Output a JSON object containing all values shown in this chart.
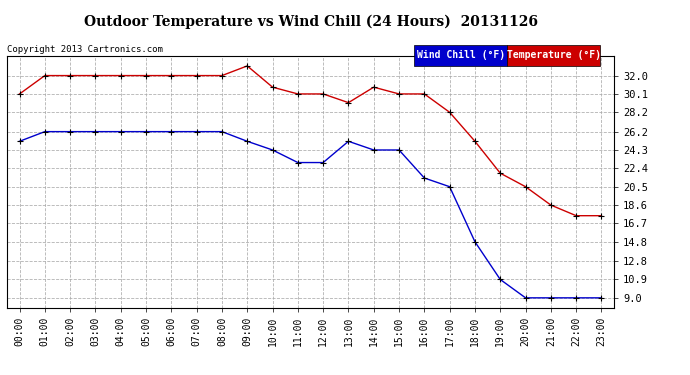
{
  "title": "Outdoor Temperature vs Wind Chill (24 Hours)  20131126",
  "copyright": "Copyright 2013 Cartronics.com",
  "background_color": "#ffffff",
  "plot_bg_color": "#ffffff",
  "grid_color": "#aaaaaa",
  "x_labels": [
    "00:00",
    "01:00",
    "02:00",
    "03:00",
    "04:00",
    "05:00",
    "06:00",
    "07:00",
    "08:00",
    "09:00",
    "10:00",
    "11:00",
    "12:00",
    "13:00",
    "14:00",
    "15:00",
    "16:00",
    "17:00",
    "18:00",
    "19:00",
    "20:00",
    "21:00",
    "22:00",
    "23:00"
  ],
  "y_ticks": [
    9.0,
    10.9,
    12.8,
    14.8,
    16.7,
    18.6,
    20.5,
    22.4,
    24.3,
    26.2,
    28.2,
    30.1,
    32.0
  ],
  "temp_color": "#cc0000",
  "wind_color": "#0000cc",
  "temp_data": [
    30.1,
    32.0,
    32.0,
    32.0,
    32.0,
    32.0,
    32.0,
    32.0,
    32.0,
    33.0,
    30.8,
    30.1,
    30.1,
    29.2,
    30.8,
    30.1,
    30.1,
    28.2,
    25.2,
    21.9,
    20.5,
    18.6,
    17.5,
    17.5
  ],
  "wind_data": [
    25.2,
    26.2,
    26.2,
    26.2,
    26.2,
    26.2,
    26.2,
    26.2,
    26.2,
    25.2,
    24.3,
    23.0,
    23.0,
    25.2,
    24.3,
    24.3,
    21.4,
    20.5,
    14.8,
    10.9,
    9.0,
    9.0,
    9.0,
    9.0
  ],
  "legend_wind_label": "Wind Chill (°F)",
  "legend_temp_label": "Temperature (°F)",
  "ylim": [
    8.0,
    34.0
  ],
  "xlim": [
    -0.5,
    23.5
  ],
  "marker": "+"
}
